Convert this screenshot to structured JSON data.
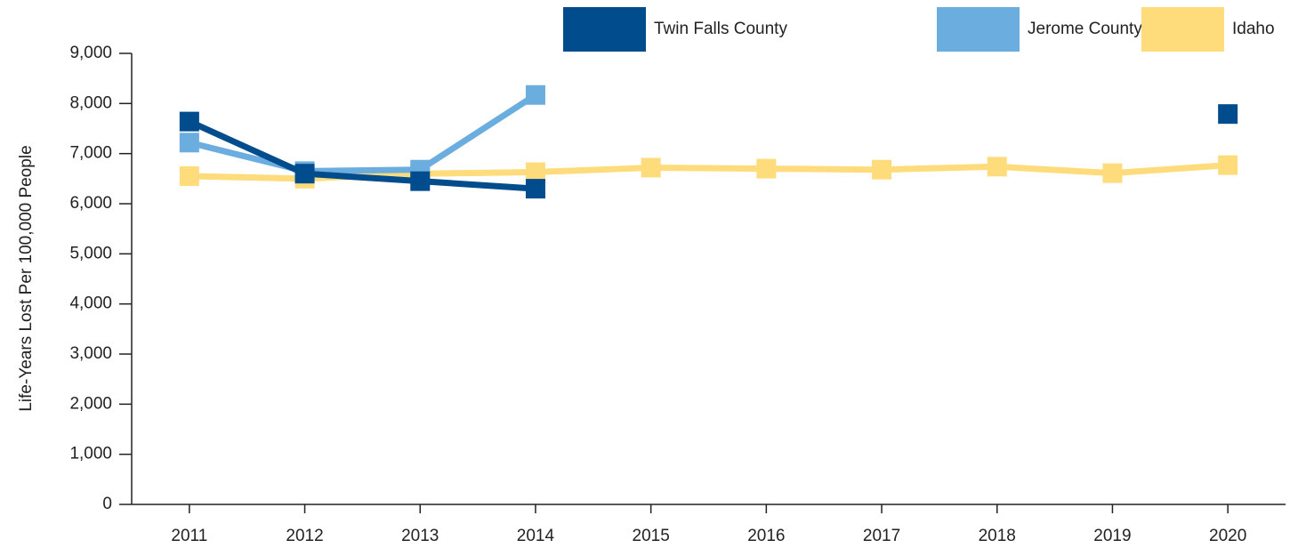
{
  "chart_data": {
    "type": "line",
    "y_label": "Life-Years Lost Per 100,000 People",
    "categories": [
      "2011",
      "2012",
      "2013",
      "2014",
      "2015",
      "2016",
      "2017",
      "2018",
      "2019",
      "2020"
    ],
    "series": [
      {
        "name": "Idaho",
        "color": "#fedc7c",
        "values": [
          6550,
          6500,
          6600,
          6630,
          6720,
          6700,
          6680,
          6740,
          6610,
          6770
        ]
      },
      {
        "name": "Jerome County",
        "color": "#6caddf",
        "values": [
          7220,
          6650,
          6680,
          8170,
          null,
          null,
          null,
          null,
          null,
          null
        ]
      },
      {
        "name": "Twin Falls County",
        "color": "#004c8c",
        "values": [
          7640,
          6600,
          6450,
          6300,
          null,
          null,
          null,
          null,
          null,
          7790
        ]
      }
    ],
    "legend_order": [
      "Twin Falls County",
      "Jerome County",
      "Idaho"
    ],
    "legend": "top-right",
    "ylim": [
      0,
      9000
    ],
    "yticks": [
      0,
      {
        "value": 1000,
        "label": "1,000"
      },
      {
        "value": 2000,
        "label": "2,000"
      },
      {
        "value": 3000,
        "label": "3,000"
      },
      {
        "value": 4000,
        "label": "4,000"
      },
      {
        "value": 5000,
        "label": "5,000"
      },
      {
        "value": 6000,
        "label": "6,000"
      },
      {
        "value": 7000,
        "label": "7,000"
      },
      {
        "value": 8000,
        "label": "8,000"
      },
      {
        "value": 9000,
        "label": "9,000"
      }
    ],
    "grid": false
  }
}
